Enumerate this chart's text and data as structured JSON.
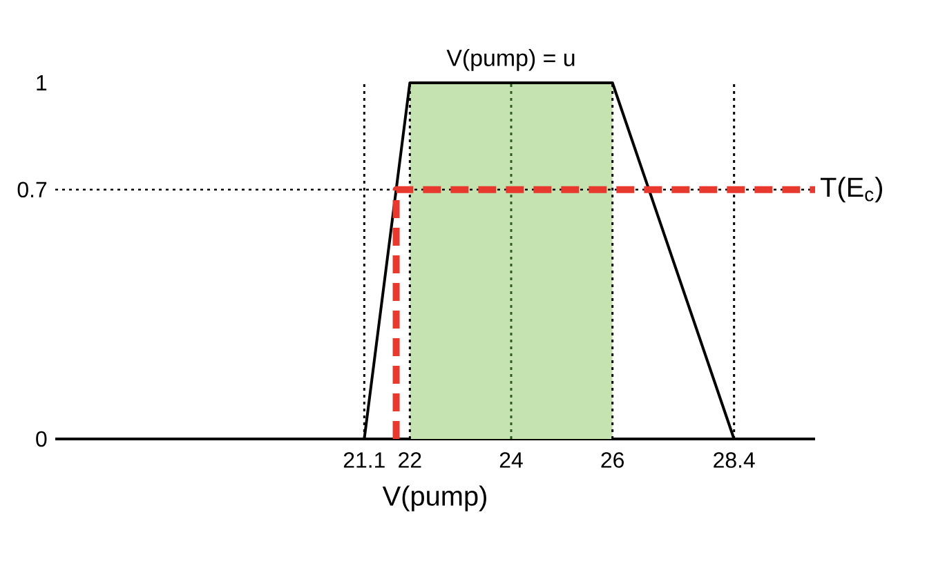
{
  "chart_data": {
    "type": "line",
    "xlabel": "V(pump)",
    "xlim": [
      15,
      30
    ],
    "ylim": [
      0,
      1
    ],
    "xticks": [
      21.1,
      22,
      24,
      26,
      28.4
    ],
    "yticks": [
      0,
      0.7,
      1
    ],
    "grid": false,
    "series": [
      {
        "color": "#000000",
        "line_style": "solid",
        "x": [
          15,
          21.1,
          22,
          26,
          28.4,
          30
        ],
        "values": [
          0,
          0,
          1,
          1,
          0,
          0
        ]
      },
      {
        "name": "T(E$_{c}$)",
        "color": "#e8392f",
        "line_style": "dashed",
        "x": [
          21.73,
          21.73,
          30
        ],
        "values": [
          0,
          0.7,
          0.7
        ]
      }
    ],
    "bands": [
      {
        "axis": "x",
        "from": 22,
        "to": 26,
        "label": "V(pump) = u",
        "color": "#c5e3b0"
      }
    ],
    "ref_lines": [
      {
        "axis": "x",
        "value": 21.1,
        "color": "#000000",
        "line_style": "dotted"
      },
      {
        "axis": "x",
        "value": 22,
        "color": "#000000",
        "line_style": "dotted"
      },
      {
        "axis": "x",
        "value": 24,
        "color": "#2e5a1c",
        "line_style": "dotted"
      },
      {
        "axis": "x",
        "value": 26,
        "color": "#000000",
        "line_style": "dotted"
      },
      {
        "axis": "x",
        "value": 28.4,
        "color": "#000000",
        "line_style": "dotted"
      },
      {
        "axis": "y",
        "value": 0.7,
        "color": "#000000",
        "line_style": "dotted"
      }
    ]
  }
}
